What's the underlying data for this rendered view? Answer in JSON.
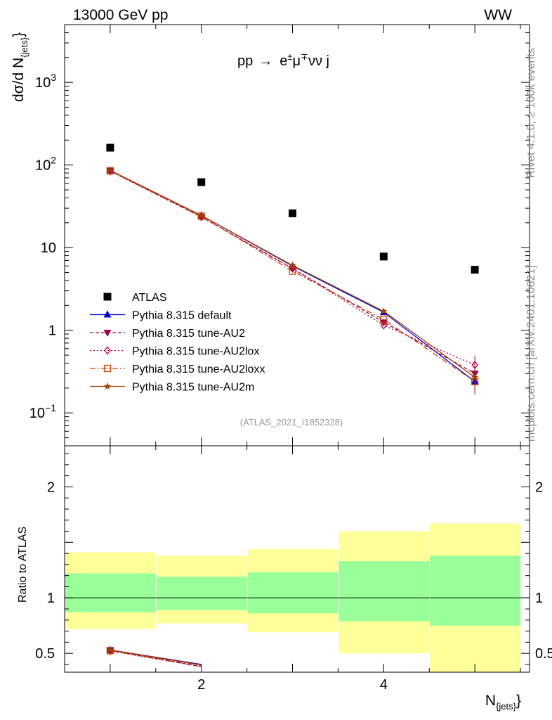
{
  "header": {
    "left": "13000 GeV pp",
    "right": "WW"
  },
  "side_labels": {
    "rivet": "Rivet 4.1.0, ≥ 100k events",
    "mcplots": "mcplots.cern.ch [arXiv:2401.10621]"
  },
  "chart_data": [
    {
      "type": "line",
      "panel": "main",
      "title": "pp → e±μ∓νν j",
      "title_parts": {
        "a": "pp",
        "arrow": "→",
        "e": "e",
        "pm": "±",
        "mu": "μ",
        "mp": "∓",
        "rest": "νν j"
      },
      "ylabel": "dσ/d N",
      "ylabel_sub": "{jets}",
      "ylabel_close": "}",
      "yscale": "log",
      "ylim": [
        0.04,
        5000
      ],
      "xlim": [
        0.5,
        5.6
      ],
      "ytick_labels": [
        {
          "v": 1000,
          "base": "10",
          "exp": "3"
        },
        {
          "v": 100,
          "base": "10",
          "exp": "2"
        },
        {
          "v": 10,
          "base": "10",
          "exp": ""
        },
        {
          "v": 1,
          "base": "1",
          "exp": ""
        },
        {
          "v": 0.1,
          "base": "10",
          "exp": "−1"
        }
      ],
      "x": [
        1,
        2,
        3,
        4,
        5
      ],
      "series": [
        {
          "name": "ATLAS",
          "color": "#000000",
          "marker": "square",
          "style": "none",
          "values": [
            162,
            62,
            26,
            7.8,
            5.4
          ]
        },
        {
          "name": "Pythia 8.315 default",
          "color": "#0000cc",
          "marker": "triangle-up",
          "style": "solid",
          "values": [
            86,
            24.5,
            6.0,
            1.65,
            0.24
          ]
        },
        {
          "name": "Pythia 8.315 tune-AU2",
          "color": "#99004d",
          "marker": "triangle-down",
          "style": "dashed",
          "values": [
            85,
            23.5,
            5.6,
            1.25,
            0.3
          ]
        },
        {
          "name": "Pythia 8.315 tune-AU2lox",
          "color": "#b5003f",
          "marker": "diamond-open",
          "style": "dotted",
          "values": [
            84,
            23.5,
            5.6,
            1.15,
            0.38
          ]
        },
        {
          "name": "Pythia 8.315 tune-AU2loxx",
          "color": "#cc4400",
          "marker": "square-open",
          "style": "dashdot",
          "values": [
            85,
            24.0,
            5.2,
            1.35,
            0.24
          ]
        },
        {
          "name": "Pythia 8.315 tune-AU2m",
          "color": "#a04000",
          "marker": "star",
          "style": "solid",
          "values": [
            86,
            24.5,
            6.1,
            1.7,
            0.27
          ]
        }
      ],
      "annotation": "(ATLAS_2021_I1852328)"
    },
    {
      "type": "area",
      "panel": "ratio",
      "ylabel": "Ratio to ATLAS",
      "xlabel": "N",
      "xlabel_sub": "{jets}",
      "xlabel_close": "}",
      "ylim": [
        0.33,
        2.37
      ],
      "xlim": [
        0.5,
        5.6
      ],
      "ytick_labels": [
        {
          "v": 2,
          "label": "2"
        },
        {
          "v": 1,
          "label": "1"
        },
        {
          "v": 0.5,
          "label": "0.5"
        }
      ],
      "xtick_labels": [
        {
          "v": 2,
          "label": "2"
        },
        {
          "v": 4,
          "label": "4"
        }
      ],
      "bands": [
        {
          "x0": 0.5,
          "x1": 1.5,
          "yellow": [
            0.72,
            1.41
          ],
          "green": [
            0.87,
            1.22
          ]
        },
        {
          "x0": 1.5,
          "x1": 2.5,
          "yellow": [
            0.77,
            1.38
          ],
          "green": [
            0.89,
            1.19
          ]
        },
        {
          "x0": 2.5,
          "x1": 3.5,
          "yellow": [
            0.69,
            1.44
          ],
          "green": [
            0.86,
            1.23
          ]
        },
        {
          "x0": 3.5,
          "x1": 4.5,
          "yellow": [
            0.5,
            1.6
          ],
          "green": [
            0.79,
            1.33
          ]
        },
        {
          "x0": 4.5,
          "x1": 5.5,
          "yellow": [
            0.3,
            1.67
          ],
          "green": [
            0.75,
            1.38
          ]
        }
      ],
      "ratio_series": [
        {
          "name": "Pythia 8.315 default",
          "color": "#0000cc",
          "style": "solid",
          "values": [
            0.53,
            0.4
          ]
        },
        {
          "name": "Pythia 8.315 tune-AU2",
          "color": "#99004d",
          "style": "dashed",
          "values": [
            0.525,
            0.38
          ]
        },
        {
          "name": "Pythia 8.315 tune-AU2lox",
          "color": "#b5003f",
          "style": "dotted",
          "values": [
            0.52,
            0.38
          ]
        },
        {
          "name": "Pythia 8.315 tune-AU2loxx",
          "color": "#cc4400",
          "style": "dashdot",
          "values": [
            0.525,
            0.39
          ]
        },
        {
          "name": "Pythia 8.315 tune-AU2m",
          "color": "#a04000",
          "style": "solid",
          "values": [
            0.53,
            0.395
          ]
        }
      ],
      "ratio_x": [
        1,
        2
      ]
    }
  ]
}
